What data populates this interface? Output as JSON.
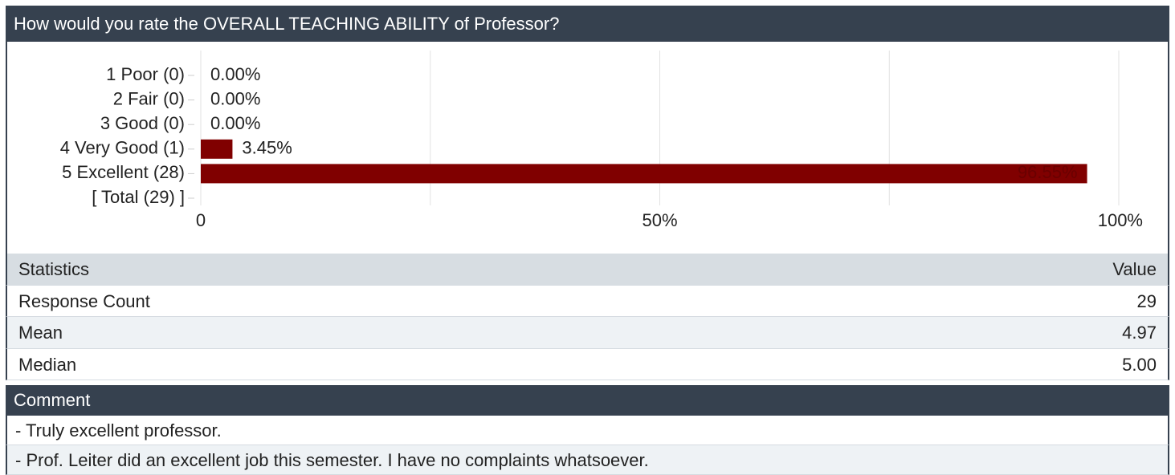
{
  "header": {
    "title": "How would you rate the OVERALL TEACHING ABILITY of Professor?"
  },
  "chart_data": {
    "type": "bar",
    "orientation": "horizontal",
    "categories": [
      "1 Poor (0)",
      "2 Fair (0)",
      "3 Good (0)",
      "4 Very Good (1)",
      "5 Excellent (28)",
      "[ Total (29) ]"
    ],
    "values": [
      0,
      0,
      0,
      3.45,
      96.55,
      null
    ],
    "value_labels": [
      "0.00%",
      "0.00%",
      "0.00%",
      "3.45%",
      "96.55%",
      null
    ],
    "color": "#800000",
    "xlim": [
      0,
      100
    ],
    "xticks": [
      0,
      {
        "value": 50,
        "label": "50%"
      },
      {
        "value": 100,
        "label": "100%"
      }
    ],
    "minor_xticks": [
      25,
      75
    ],
    "grid": true
  },
  "statistics": {
    "header": [
      "Statistics",
      "Value"
    ],
    "rows": [
      [
        "Response Count",
        "29"
      ],
      [
        "Mean",
        "4.97"
      ],
      [
        "Median",
        "5.00"
      ]
    ]
  },
  "comments": {
    "title": "Comment",
    "rows": [
      "- Truly excellent professor.",
      "- Prof. Leiter did an excellent job this semester. I have no complaints whatsoever."
    ]
  }
}
